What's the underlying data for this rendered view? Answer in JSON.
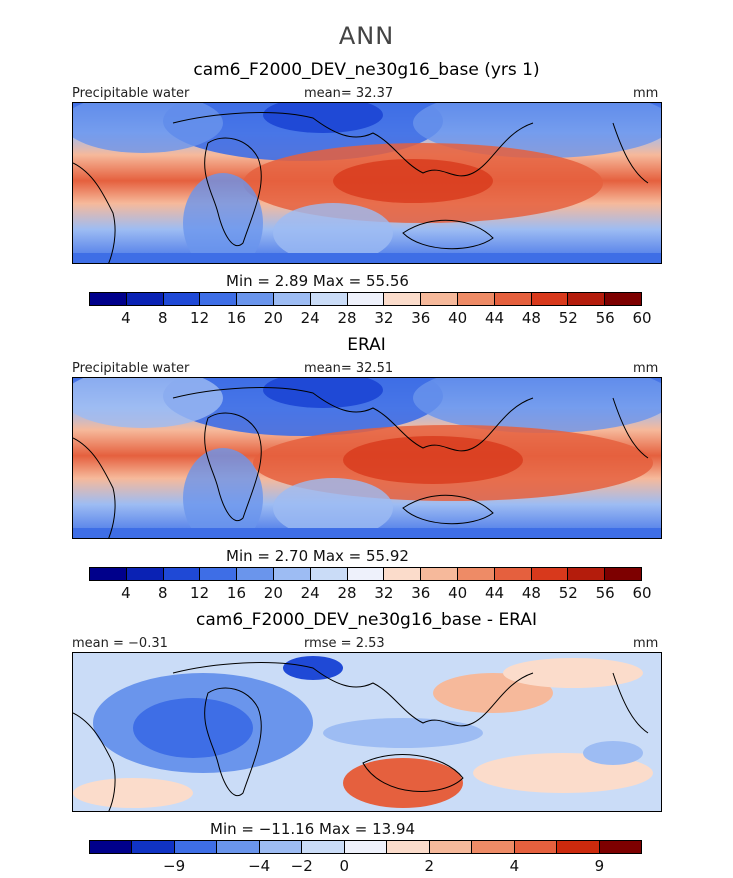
{
  "season": "ANN",
  "panels": [
    {
      "title": "cam6_F2000_DEV_ne30g16_base (yrs 1)",
      "left_label": "Precipitable water",
      "center_label": "mean=   32.37",
      "units": "mm",
      "minmax": "Min =     2.89  Max =    55.56",
      "colorbar_ticks": [
        "4",
        "8",
        "12",
        "16",
        "20",
        "24",
        "28",
        "32",
        "36",
        "40",
        "44",
        "48",
        "52",
        "56",
        "60"
      ]
    },
    {
      "title": "ERAI",
      "left_label": "Precipitable water",
      "center_label": "mean=   32.51",
      "units": "mm",
      "minmax": "Min =     2.70  Max =    55.92",
      "colorbar_ticks": [
        "4",
        "8",
        "12",
        "16",
        "20",
        "24",
        "28",
        "32",
        "36",
        "40",
        "44",
        "48",
        "52",
        "56",
        "60"
      ]
    },
    {
      "title": "cam6_F2000_DEV_ne30g16_base - ERAI",
      "left_label": "mean =   −0.31",
      "center_label": "rmse =    2.53",
      "units": "mm",
      "minmax": "Min = −11.16  Max =   13.94",
      "colorbar_ticks": [
        "−9",
        "−4",
        "−2",
        "0",
        "2",
        "4",
        "9"
      ]
    }
  ],
  "colors": {
    "field_scale": [
      "#00008b",
      "#0a22b4",
      "#1f49d6",
      "#3e6ee6",
      "#6a95ec",
      "#9dbcf3",
      "#cadcf7",
      "#eef1fb",
      "#fbdccb",
      "#f6b99b",
      "#ee8b66",
      "#e5603e",
      "#d8391c",
      "#b41c0c",
      "#7d0000"
    ],
    "diff_scale": [
      "#00008b",
      "#1033c4",
      "#3e6ee6",
      "#6a95ec",
      "#9dbcf3",
      "#cadcf7",
      "#eef1fb",
      "#fbdccb",
      "#f6b99b",
      "#ee8b66",
      "#e5603e",
      "#cc2a0d",
      "#7d0000"
    ]
  }
}
